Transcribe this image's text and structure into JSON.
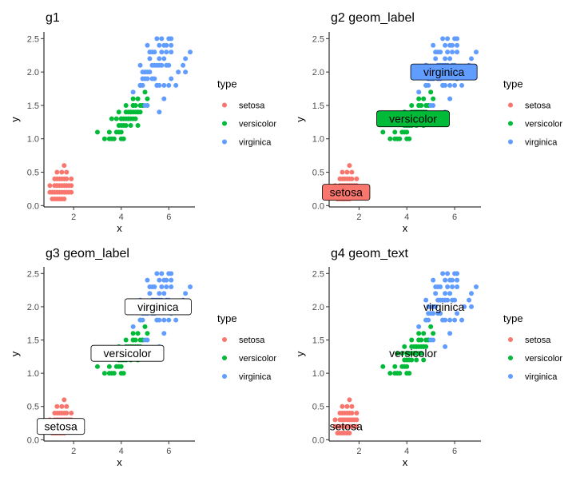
{
  "chart_data": [
    {
      "type": "scatter",
      "title": "g1",
      "xlabel": "x",
      "ylabel": "y",
      "xlim": [
        0.75,
        7.1
      ],
      "ylim": [
        -0.02,
        2.6
      ],
      "xticks": [
        2,
        4,
        6
      ],
      "yticks": [
        0.0,
        0.5,
        1.0,
        1.5,
        2.0,
        2.5
      ],
      "xtick_labels": [
        "2",
        "4",
        "6"
      ],
      "ytick_labels": [
        "0.0",
        "0.5",
        "1.0",
        "1.5",
        "2.0",
        "2.5"
      ],
      "labels": [],
      "legend": {
        "title": "type",
        "entries": [
          "setosa",
          "versicolor",
          "virginica"
        ]
      }
    },
    {
      "type": "scatter",
      "title": "g2 geom_label",
      "xlabel": "x",
      "ylabel": "y",
      "xlim": [
        0.75,
        7.1
      ],
      "ylim": [
        -0.02,
        2.6
      ],
      "xticks": [
        2,
        4,
        6
      ],
      "yticks": [
        0.0,
        0.5,
        1.0,
        1.5,
        2.0,
        2.5
      ],
      "xtick_labels": [
        "2",
        "4",
        "6"
      ],
      "ytick_labels": [
        "0.0",
        "0.5",
        "1.0",
        "1.5",
        "2.0",
        "2.5"
      ],
      "label_style": "filled",
      "labels": [
        {
          "text": "setosa",
          "series": "setosa",
          "x": 1.46,
          "y": 0.2
        },
        {
          "text": "versicolor",
          "series": "versicolor",
          "x": 4.26,
          "y": 1.3
        },
        {
          "text": "virginica",
          "series": "virginica",
          "x": 5.55,
          "y": 2.0
        }
      ],
      "legend": {
        "title": "type",
        "entries": [
          "setosa",
          "versicolor",
          "virginica"
        ]
      }
    },
    {
      "type": "scatter",
      "title": "g3 geom_label",
      "xlabel": "x",
      "ylabel": "y",
      "xlim": [
        0.75,
        7.1
      ],
      "ylim": [
        -0.02,
        2.6
      ],
      "xticks": [
        2,
        4,
        6
      ],
      "yticks": [
        0.0,
        0.5,
        1.0,
        1.5,
        2.0,
        2.5
      ],
      "xtick_labels": [
        "2",
        "4",
        "6"
      ],
      "ytick_labels": [
        "0.0",
        "0.5",
        "1.0",
        "1.5",
        "2.0",
        "2.5"
      ],
      "label_style": "white",
      "labels": [
        {
          "text": "setosa",
          "series": "setosa",
          "x": 1.46,
          "y": 0.2
        },
        {
          "text": "versicolor",
          "series": "versicolor",
          "x": 4.26,
          "y": 1.3
        },
        {
          "text": "virginica",
          "series": "virginica",
          "x": 5.55,
          "y": 2.0
        }
      ],
      "legend": {
        "title": "type",
        "entries": [
          "setosa",
          "versicolor",
          "virginica"
        ]
      }
    },
    {
      "type": "scatter",
      "title": "g4 geom_text",
      "xlabel": "x",
      "ylabel": "y",
      "xlim": [
        0.75,
        7.1
      ],
      "ylim": [
        -0.02,
        2.6
      ],
      "xticks": [
        2,
        4,
        6
      ],
      "yticks": [
        0.0,
        0.5,
        1.0,
        1.5,
        2.0,
        2.5
      ],
      "xtick_labels": [
        "2",
        "4",
        "6"
      ],
      "ytick_labels": [
        "0.0",
        "0.5",
        "1.0",
        "1.5",
        "2.0",
        "2.5"
      ],
      "label_style": "text",
      "labels": [
        {
          "text": "setosa",
          "series": "setosa",
          "x": 1.46,
          "y": 0.2
        },
        {
          "text": "versicolor",
          "series": "versicolor",
          "x": 4.26,
          "y": 1.3
        },
        {
          "text": "virginica",
          "series": "virginica",
          "x": 5.55,
          "y": 2.0
        }
      ],
      "legend": {
        "title": "type",
        "entries": [
          "setosa",
          "versicolor",
          "virginica"
        ]
      }
    }
  ],
  "series_colors": {
    "setosa": "#F8766D",
    "versicolor": "#00BA38",
    "virginica": "#619CFF"
  },
  "series": [
    {
      "name": "setosa",
      "points": [
        [
          1.4,
          0.2
        ],
        [
          1.3,
          0.2
        ],
        [
          1.5,
          0.2
        ],
        [
          1.7,
          0.4
        ],
        [
          1.4,
          0.3
        ],
        [
          1.5,
          0.1
        ],
        [
          1.6,
          0.2
        ],
        [
          1.1,
          0.1
        ],
        [
          1.2,
          0.2
        ],
        [
          1.5,
          0.4
        ],
        [
          1.3,
          0.4
        ],
        [
          1.7,
          0.3
        ],
        [
          1.0,
          0.2
        ],
        [
          1.7,
          0.5
        ],
        [
          1.9,
          0.2
        ],
        [
          1.6,
          0.4
        ],
        [
          1.5,
          0.3
        ],
        [
          1.4,
          0.1
        ],
        [
          1.6,
          0.6
        ],
        [
          1.9,
          0.4
        ],
        [
          1.2,
          0.1
        ],
        [
          1.3,
          0.3
        ],
        [
          1.4,
          0.4
        ],
        [
          1.3,
          0.1
        ],
        [
          1.6,
          0.3
        ],
        [
          1.9,
          0.3
        ],
        [
          1.8,
          0.2
        ],
        [
          1.1,
          0.2
        ],
        [
          1.2,
          0.4
        ],
        [
          1.5,
          0.5
        ],
        [
          1.2,
          0.3
        ],
        [
          1.3,
          0.5
        ],
        [
          1.8,
          0.3
        ],
        [
          1.7,
          0.2
        ],
        [
          1.6,
          0.1
        ],
        [
          1.0,
          0.3
        ]
      ]
    },
    {
      "name": "versicolor",
      "points": [
        [
          4.7,
          1.4
        ],
        [
          4.5,
          1.5
        ],
        [
          4.9,
          1.5
        ],
        [
          4.0,
          1.3
        ],
        [
          4.6,
          1.5
        ],
        [
          4.5,
          1.3
        ],
        [
          4.7,
          1.6
        ],
        [
          3.3,
          1.0
        ],
        [
          4.6,
          1.3
        ],
        [
          3.9,
          1.4
        ],
        [
          3.5,
          1.0
        ],
        [
          4.2,
          1.5
        ],
        [
          4.0,
          1.0
        ],
        [
          4.7,
          1.4
        ],
        [
          3.6,
          1.3
        ],
        [
          4.4,
          1.4
        ],
        [
          4.1,
          1.0
        ],
        [
          4.5,
          1.5
        ],
        [
          3.9,
          1.1
        ],
        [
          4.8,
          1.8
        ],
        [
          4.0,
          1.3
        ],
        [
          4.9,
          1.5
        ],
        [
          4.7,
          1.2
        ],
        [
          4.3,
          1.3
        ],
        [
          4.4,
          1.4
        ],
        [
          4.8,
          1.4
        ],
        [
          5.0,
          1.7
        ],
        [
          3.8,
          1.1
        ],
        [
          3.7,
          1.0
        ],
        [
          5.1,
          1.6
        ],
        [
          4.5,
          1.6
        ],
        [
          4.4,
          1.3
        ],
        [
          4.1,
          1.3
        ],
        [
          4.0,
          1.2
        ],
        [
          4.6,
          1.4
        ],
        [
          3.0,
          1.1
        ],
        [
          4.2,
          1.3
        ],
        [
          4.2,
          1.2
        ],
        [
          4.3,
          1.3
        ],
        [
          4.1,
          1.2
        ],
        [
          3.6,
          1.0
        ],
        [
          3.9,
          1.2
        ],
        [
          4.8,
          1.5
        ],
        [
          3.5,
          1.1
        ],
        [
          4.5,
          1.4
        ],
        [
          4.2,
          1.4
        ],
        [
          4.4,
          1.2
        ],
        [
          4.0,
          1.1
        ],
        [
          4.3,
          1.4
        ],
        [
          3.8,
          1.3
        ]
      ]
    },
    {
      "name": "virginica",
      "points": [
        [
          6.0,
          2.5
        ],
        [
          5.1,
          1.9
        ],
        [
          5.9,
          2.1
        ],
        [
          5.6,
          1.8
        ],
        [
          5.8,
          2.2
        ],
        [
          6.6,
          2.1
        ],
        [
          4.5,
          1.7
        ],
        [
          6.3,
          1.8
        ],
        [
          5.8,
          1.8
        ],
        [
          6.1,
          2.5
        ],
        [
          5.1,
          2.0
        ],
        [
          5.3,
          1.9
        ],
        [
          5.5,
          2.1
        ],
        [
          5.0,
          2.0
        ],
        [
          5.1,
          2.4
        ],
        [
          5.3,
          2.3
        ],
        [
          5.5,
          1.8
        ],
        [
          6.7,
          2.2
        ],
        [
          6.9,
          2.3
        ],
        [
          5.0,
          1.5
        ],
        [
          5.7,
          2.3
        ],
        [
          4.9,
          2.0
        ],
        [
          6.7,
          2.0
        ],
        [
          4.9,
          1.8
        ],
        [
          5.7,
          2.1
        ],
        [
          6.0,
          1.8
        ],
        [
          4.8,
          1.8
        ],
        [
          5.6,
          2.1
        ],
        [
          5.8,
          1.6
        ],
        [
          6.1,
          1.9
        ],
        [
          6.4,
          2.0
        ],
        [
          5.6,
          2.2
        ],
        [
          5.1,
          1.5
        ],
        [
          5.6,
          1.4
        ],
        [
          6.1,
          2.3
        ],
        [
          5.6,
          2.4
        ],
        [
          5.5,
          1.8
        ],
        [
          5.4,
          2.1
        ],
        [
          5.4,
          2.3
        ],
        [
          5.2,
          2.3
        ],
        [
          5.2,
          2.0
        ],
        [
          5.9,
          2.3
        ],
        [
          5.7,
          2.5
        ],
        [
          5.9,
          2.4
        ],
        [
          6.1,
          2.4
        ],
        [
          5.8,
          2.4
        ],
        [
          5.0,
          1.9
        ],
        [
          4.8,
          2.1
        ],
        [
          5.4,
          1.9
        ],
        [
          5.3,
          2.1
        ],
        [
          6.0,
          2.1
        ],
        [
          5.5,
          2.5
        ],
        [
          4.9,
          1.9
        ],
        [
          5.2,
          2.2
        ]
      ]
    }
  ]
}
